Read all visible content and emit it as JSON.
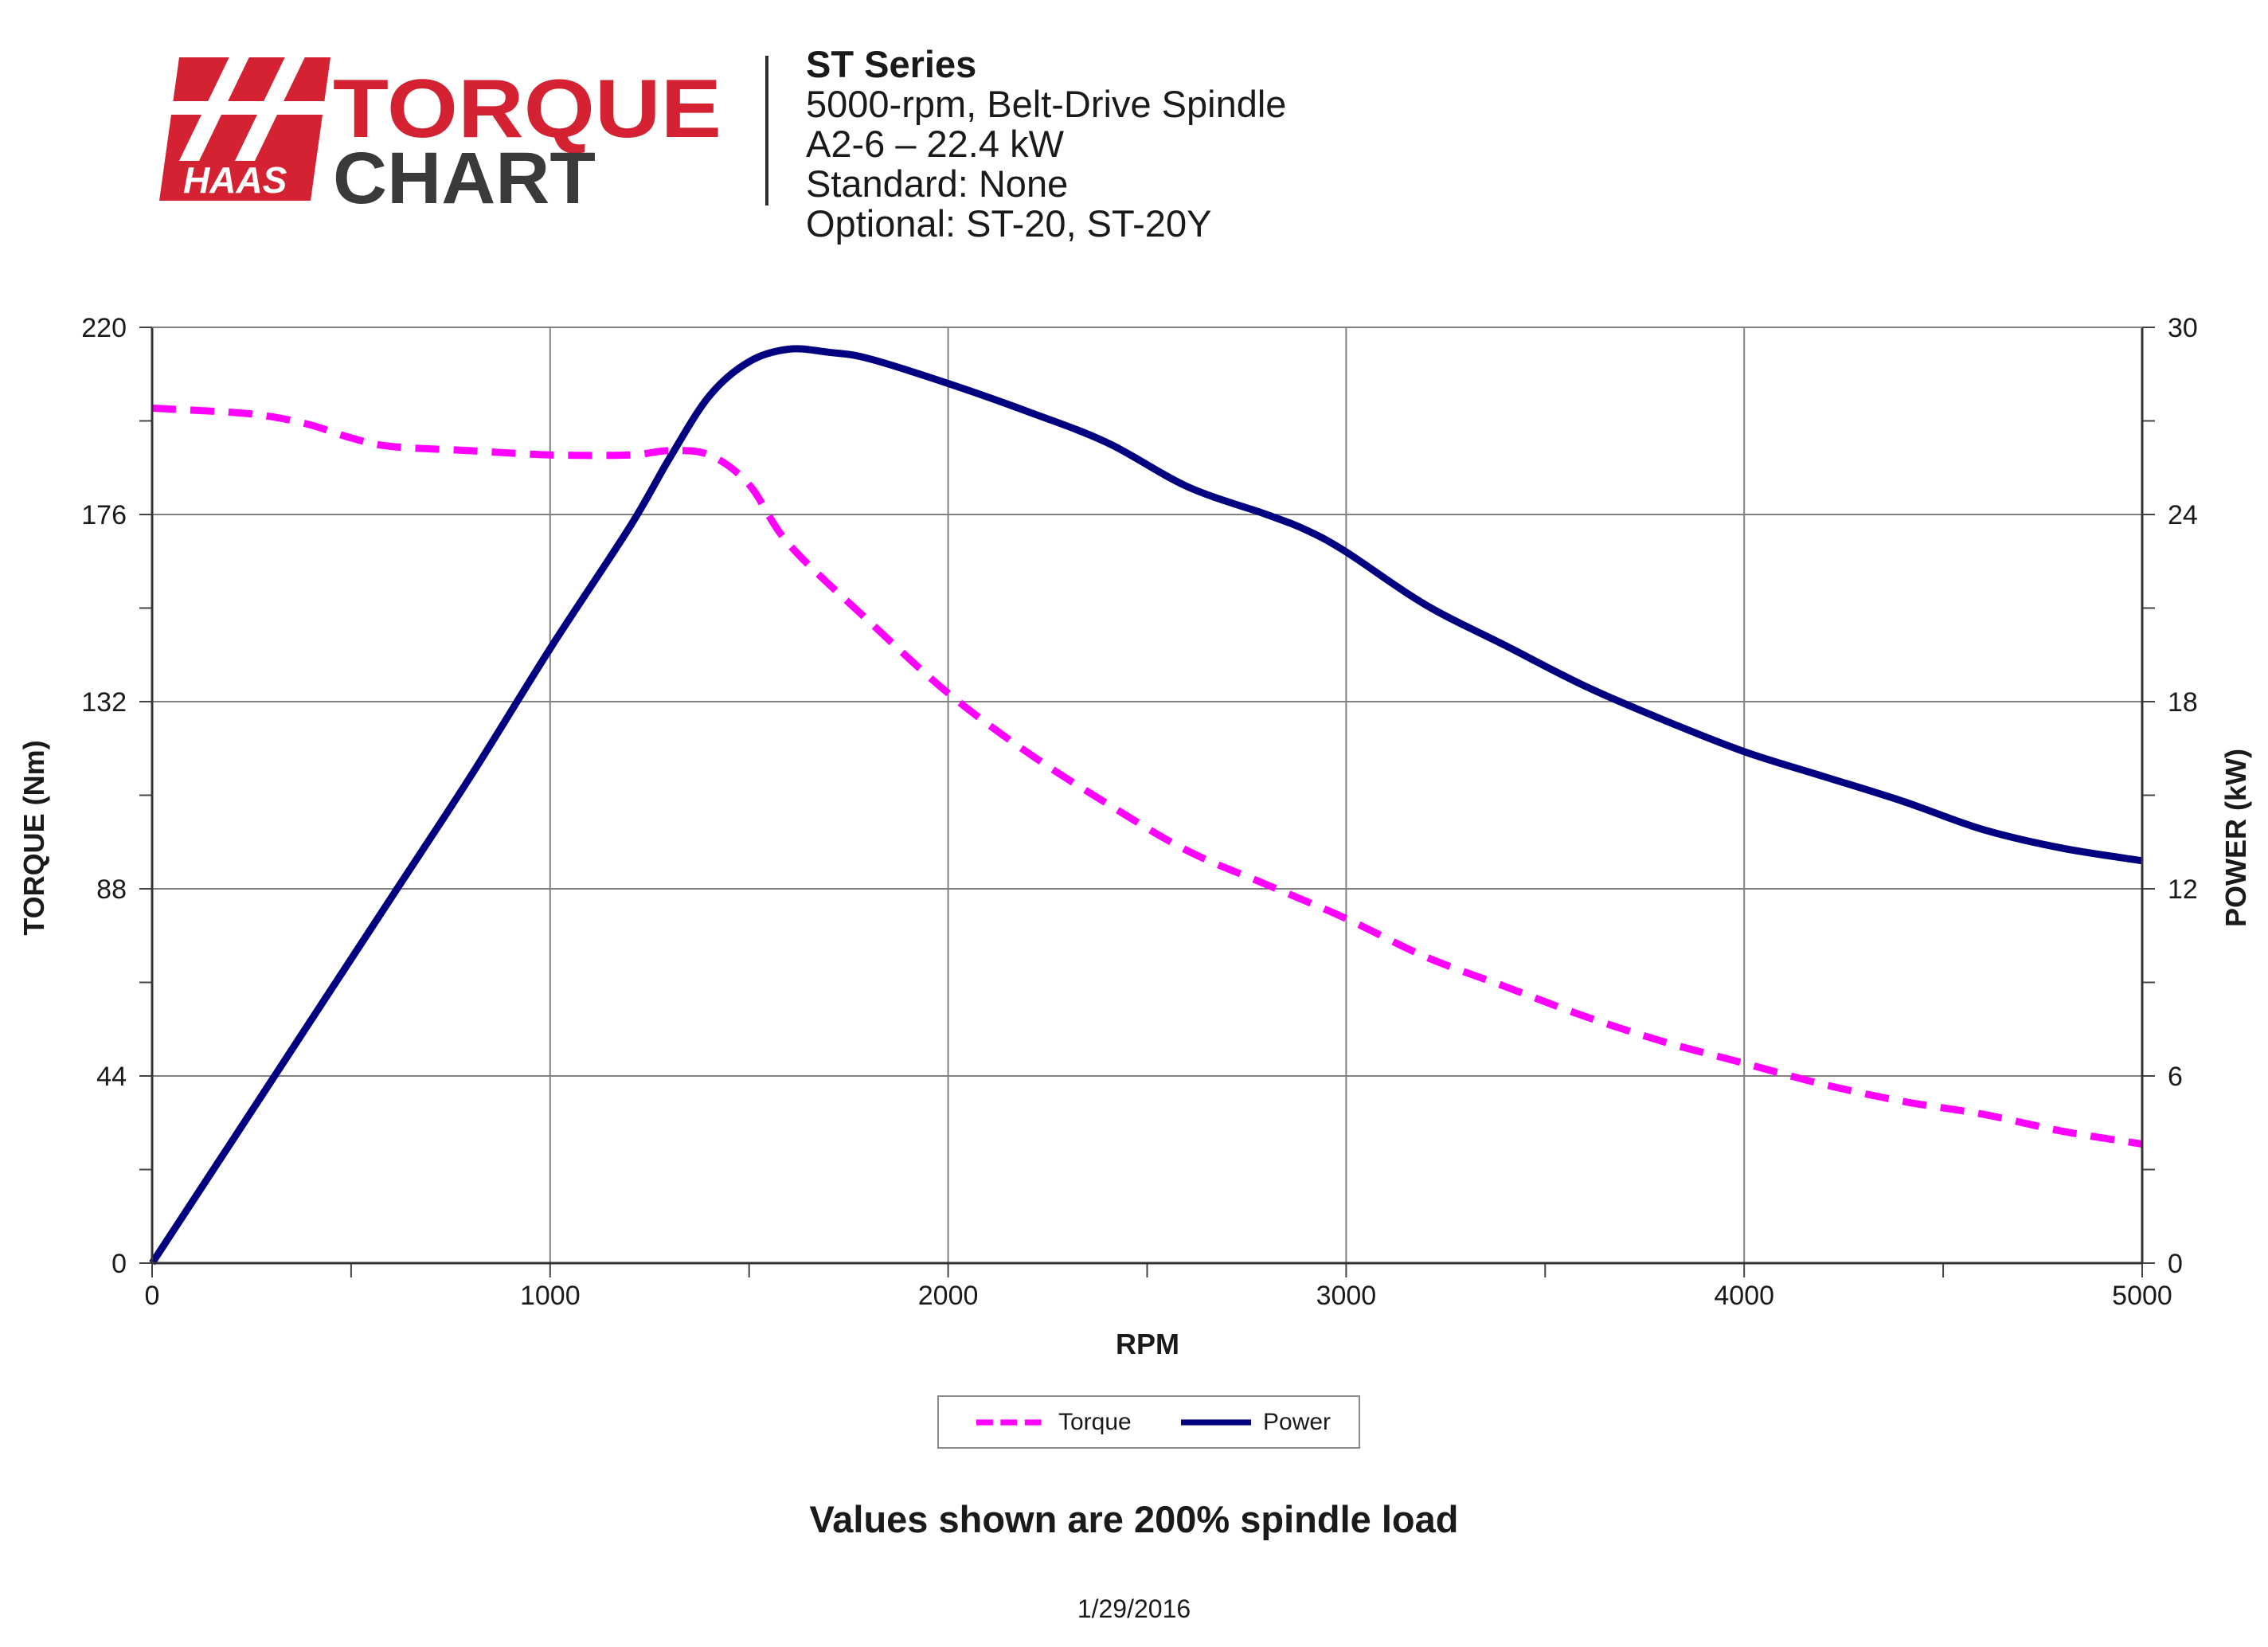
{
  "header": {
    "logo_text_top": "TORQUE",
    "logo_text_bottom": "CHART",
    "logo_brand": "HAAS",
    "lines": [
      "ST Series",
      "5000-rpm, Belt-Drive Spindle",
      "A2-6 – 22.4 kW",
      "Standard: None",
      "Optional: ST-20, ST-20Y"
    ]
  },
  "colors": {
    "torque": "#ff00ff",
    "power": "#000080",
    "brand_red": "#d42232",
    "logo_dark": "#3a3a3a",
    "grid": "#808080"
  },
  "chart_data": {
    "type": "line",
    "xlabel": "RPM",
    "ylabel": "TORQUE (Nm)",
    "y2label": "POWER (kW)",
    "xlim": [
      0,
      5000
    ],
    "ylim": [
      0,
      220
    ],
    "y2lim": [
      0,
      30
    ],
    "xticks": [
      0,
      1000,
      2000,
      3000,
      4000,
      5000
    ],
    "yticks": [
      0,
      44,
      88,
      132,
      176,
      220
    ],
    "y2ticks": [
      0,
      6,
      12,
      18,
      24,
      30
    ],
    "grid": true,
    "legend_position": "bottom-center",
    "series": [
      {
        "name": "Torque",
        "axis": "left",
        "style": "dashed",
        "x": [
          0,
          200,
          300,
          400,
          500,
          600,
          800,
          1000,
          1200,
          1300,
          1400,
          1500,
          1600,
          1800,
          2000,
          2200,
          2400,
          2600,
          2800,
          3000,
          3200,
          3400,
          3600,
          3800,
          4000,
          4200,
          4400,
          4600,
          4800,
          5000
        ],
        "y": [
          201,
          200,
          199,
          197,
          194,
          192,
          191,
          190,
          190,
          191,
          190,
          183,
          169,
          151,
          134,
          120,
          108,
          97,
          89,
          81,
          72,
          65,
          58,
          52,
          47,
          42,
          38,
          35,
          31,
          28
        ]
      },
      {
        "name": "Power",
        "axis": "right",
        "style": "solid",
        "x": [
          0,
          200,
          400,
          600,
          800,
          1000,
          1200,
          1300,
          1400,
          1500,
          1600,
          1700,
          1800,
          2000,
          2200,
          2400,
          2600,
          2800,
          2900,
          3000,
          3200,
          3400,
          3600,
          3800,
          4000,
          4200,
          4400,
          4600,
          4800,
          5000
        ],
        "y": [
          0,
          3.9,
          7.8,
          11.7,
          15.6,
          19.7,
          23.6,
          25.8,
          27.8,
          28.9,
          29.3,
          29.2,
          29.0,
          28.2,
          27.3,
          26.3,
          24.9,
          24.0,
          23.5,
          22.8,
          21.1,
          19.8,
          18.5,
          17.4,
          16.4,
          15.6,
          14.8,
          13.9,
          13.3,
          12.9
        ]
      }
    ]
  },
  "footnote": "Values shown are 200% spindle load",
  "date": "1/29/2016"
}
